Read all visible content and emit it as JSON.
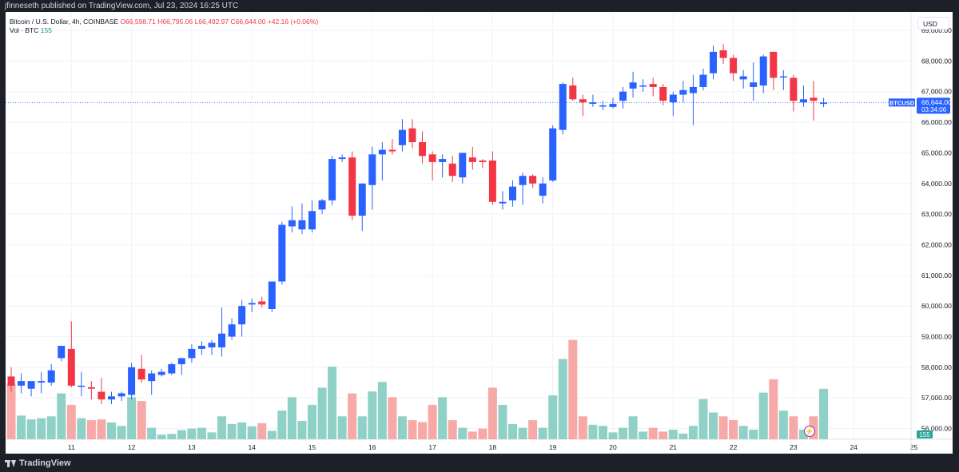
{
  "header": {
    "published_text": "jfinneseth published on TradingView.com, Jul 23, 2024 16:25 UTC"
  },
  "legend": {
    "symbol_line": "Bitcoin / U.S. Dollar, 4h, COINBASE",
    "open": "O66,598.71",
    "high": "H66,795.06",
    "low": "L66,492.97",
    "close": "C66,644.00",
    "change": "+42.16 (+0.06%)",
    "volume_label": "Vol · BTC",
    "volume_value": "155"
  },
  "toolbar": {
    "currency_button": "USD"
  },
  "branding": {
    "logo_text": "TradingView",
    "logo_icon": "tradingview-logo-icon"
  },
  "price_tag": {
    "symbol": "BTCUSD",
    "price": "66,644.00",
    "countdown": "03:34:06",
    "volume": "155"
  },
  "colors": {
    "up": "#2962ff",
    "down": "#f23645",
    "vol_up": "#8fd1c6",
    "vol_down": "#f7a9a7",
    "grid": "#f0f3fa",
    "last_price_line": "#2962ff",
    "volume_tag": "#26a69a"
  },
  "chart_data": {
    "type": "candlestick",
    "title": "Bitcoin / U.S. Dollar, 4h, COINBASE",
    "y_ticks": [
      56000,
      57000,
      58000,
      59000,
      60000,
      61000,
      62000,
      63000,
      64000,
      65000,
      66000,
      67000,
      68000,
      69000
    ],
    "y_tick_labels": [
      "56,000.00",
      "57,000.00",
      "58,000.00",
      "59,000.00",
      "60,000.00",
      "61,000.00",
      "62,000.00",
      "63,000.00",
      "64,000.00",
      "65,000.00",
      "66,000.00",
      "67,000.00",
      "68,000.00",
      "69,000.00"
    ],
    "ylim": [
      55650,
      69600
    ],
    "x_ticks": [
      {
        "label": "11",
        "index": 6
      },
      {
        "label": "12",
        "index": 12
      },
      {
        "label": "13",
        "index": 18
      },
      {
        "label": "14",
        "index": 24
      },
      {
        "label": "15",
        "index": 30
      },
      {
        "label": "16",
        "index": 36
      },
      {
        "label": "17",
        "index": 42
      },
      {
        "label": "18",
        "index": 48
      },
      {
        "label": "19",
        "index": 54
      },
      {
        "label": "20",
        "index": 60
      },
      {
        "label": "21",
        "index": 66
      },
      {
        "label": "22",
        "index": 72
      },
      {
        "label": "23",
        "index": 78
      },
      {
        "label": "24",
        "index": 84
      },
      {
        "label": "25",
        "index": 90
      }
    ],
    "last_price": 66644,
    "candles": [
      [
        57700,
        58000,
        57200,
        57400,
        1.45
      ],
      [
        57400,
        57800,
        57150,
        57550,
        0.62
      ],
      [
        57300,
        57500,
        57050,
        57550,
        0.52
      ],
      [
        57500,
        57850,
        57150,
        57550,
        0.55
      ],
      [
        57500,
        58100,
        57400,
        57900,
        0.6
      ],
      [
        58300,
        58700,
        58200,
        58700,
        1.2
      ],
      [
        58600,
        59500,
        57350,
        57400,
        0.9
      ],
      [
        57400,
        57850,
        57050,
        57400,
        0.55
      ],
      [
        57350,
        57550,
        56950,
        57300,
        0.5
      ],
      [
        57200,
        57650,
        56800,
        56950,
        0.52
      ],
      [
        56950,
        57200,
        56800,
        57050,
        0.44
      ],
      [
        57050,
        57200,
        56900,
        57150,
        0.35
      ],
      [
        57100,
        58150,
        56950,
        58000,
        1.1
      ],
      [
        57950,
        58400,
        57500,
        57600,
        1.0
      ],
      [
        57550,
        57900,
        57100,
        57800,
        0.3
      ],
      [
        57750,
        57950,
        57700,
        57850,
        0.12
      ],
      [
        57800,
        58150,
        57750,
        58100,
        0.14
      ],
      [
        58100,
        58250,
        57750,
        58300,
        0.24
      ],
      [
        58300,
        58750,
        58150,
        58600,
        0.28
      ],
      [
        58600,
        58850,
        58400,
        58700,
        0.3
      ],
      [
        58650,
        58900,
        58400,
        58800,
        0.18
      ],
      [
        58650,
        59950,
        58350,
        59100,
        0.6
      ],
      [
        59000,
        59600,
        58900,
        59400,
        0.4
      ],
      [
        59400,
        60200,
        59000,
        60000,
        0.44
      ],
      [
        60050,
        60250,
        59800,
        60100,
        0.34
      ],
      [
        60150,
        60300,
        59950,
        60050,
        0.42
      ],
      [
        59900,
        60800,
        59800,
        60800,
        0.22
      ],
      [
        60800,
        62750,
        60700,
        62650,
        0.75
      ],
      [
        62600,
        63250,
        62400,
        62800,
        1.1
      ],
      [
        62500,
        63350,
        62350,
        62800,
        0.48
      ],
      [
        62500,
        63450,
        62400,
        63100,
        0.9
      ],
      [
        63150,
        63500,
        63000,
        63450,
        1.35
      ],
      [
        63450,
        64900,
        63300,
        64800,
        1.9
      ],
      [
        64800,
        64950,
        64700,
        64850,
        0.6
      ],
      [
        64850,
        65050,
        62800,
        62950,
        1.2
      ],
      [
        62950,
        63950,
        62450,
        64000,
        0.6
      ],
      [
        63950,
        65200,
        63150,
        64950,
        1.25
      ],
      [
        64950,
        65350,
        64100,
        65100,
        1.5
      ],
      [
        65100,
        65450,
        64950,
        65050,
        1.1
      ],
      [
        65250,
        66100,
        65050,
        65750,
        0.6
      ],
      [
        65800,
        66100,
        65150,
        65350,
        0.5
      ],
      [
        65350,
        65700,
        64650,
        64900,
        0.45
      ],
      [
        64950,
        65050,
        64100,
        64700,
        0.9
      ],
      [
        64700,
        64950,
        64200,
        64800,
        1.1
      ],
      [
        64650,
        64900,
        64050,
        64250,
        0.5
      ],
      [
        64200,
        65000,
        64000,
        65000,
        0.3
      ],
      [
        64850,
        65200,
        64450,
        64700,
        0.2
      ],
      [
        64750,
        64800,
        64500,
        64700,
        0.28
      ],
      [
        64750,
        65050,
        63300,
        63400,
        1.35
      ],
      [
        63350,
        63750,
        63150,
        63400,
        0.9
      ],
      [
        63450,
        64100,
        63250,
        63900,
        0.4
      ],
      [
        63950,
        64350,
        63300,
        64250,
        0.3
      ],
      [
        64250,
        64300,
        63850,
        64000,
        0.5
      ],
      [
        63600,
        64200,
        63350,
        64000,
        0.3
      ],
      [
        64100,
        65900,
        64050,
        65800,
        1.15
      ],
      [
        65750,
        67300,
        65600,
        67250,
        2.1
      ],
      [
        67200,
        67450,
        66700,
        66750,
        2.6
      ],
      [
        66750,
        66900,
        66200,
        66650,
        0.6
      ],
      [
        66600,
        66900,
        66500,
        66650,
        0.38
      ],
      [
        66550,
        66700,
        66400,
        66550,
        0.35
      ],
      [
        66500,
        66800,
        66450,
        66600,
        0.18
      ],
      [
        66700,
        67150,
        66450,
        67000,
        0.3
      ],
      [
        67100,
        67650,
        66800,
        67300,
        0.6
      ],
      [
        67200,
        67400,
        67000,
        67200,
        0.2
      ],
      [
        67250,
        67450,
        66850,
        67150,
        0.3
      ],
      [
        67150,
        67250,
        66550,
        66700,
        0.2
      ],
      [
        66650,
        67000,
        66200,
        66900,
        0.25
      ],
      [
        66900,
        67350,
        66650,
        67050,
        0.15
      ],
      [
        66950,
        67550,
        65900,
        67150,
        0.35
      ],
      [
        67150,
        67750,
        67050,
        67550,
        1.05
      ],
      [
        67600,
        68500,
        67400,
        68300,
        0.7
      ],
      [
        68350,
        68550,
        67900,
        68100,
        0.6
      ],
      [
        68100,
        68200,
        67350,
        67600,
        0.5
      ],
      [
        67400,
        67700,
        67100,
        67500,
        0.35
      ],
      [
        67150,
        67950,
        66700,
        67300,
        0.25
      ],
      [
        67200,
        68200,
        66950,
        68150,
        1.22
      ],
      [
        68300,
        68300,
        67050,
        67450,
        1.57
      ],
      [
        67500,
        67700,
        67050,
        67500,
        0.75
      ],
      [
        67450,
        67550,
        66350,
        66700,
        0.6
      ],
      [
        66650,
        67200,
        66500,
        66750,
        0.25
      ],
      [
        66800,
        67350,
        66050,
        66700,
        0.6
      ],
      [
        66598,
        66795,
        66493,
        66644,
        1.32
      ]
    ]
  }
}
